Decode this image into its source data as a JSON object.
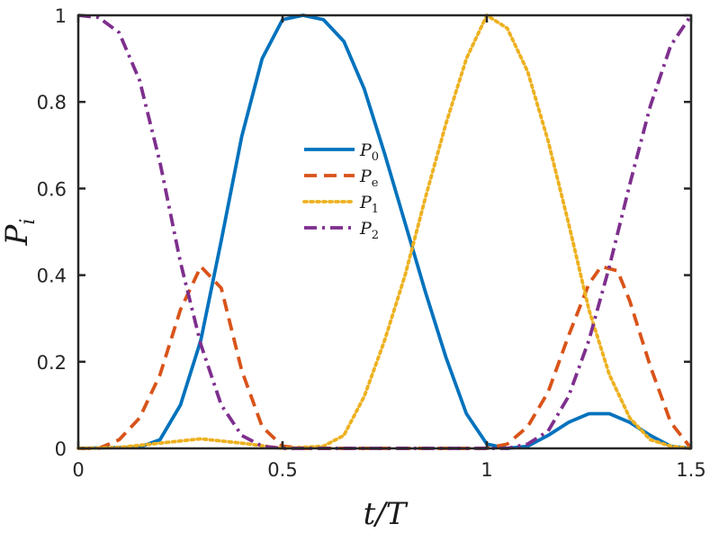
{
  "chart_data": {
    "type": "line",
    "xlabel": "t/T",
    "ylabel": "P",
    "ylabel_sub": "i",
    "xlim": [
      0,
      1.5
    ],
    "ylim": [
      0,
      1
    ],
    "x_ticks": [
      0,
      0.5,
      1,
      1.5
    ],
    "x_tick_labels": [
      "0",
      "0.5",
      "1",
      "1.5"
    ],
    "y_ticks": [
      0,
      0.2,
      0.4,
      0.6,
      0.8,
      1
    ],
    "y_tick_labels": [
      "0",
      "0.2",
      "0.4",
      "0.6",
      "0.8",
      "1"
    ],
    "grid": false,
    "legend_position": "center",
    "series": [
      {
        "name": "P",
        "name_sub": "0",
        "color": "#0072BD",
        "style": "solid",
        "points": [
          [
            0,
            0
          ],
          [
            0.15,
            0.003
          ],
          [
            0.2,
            0.02
          ],
          [
            0.25,
            0.1
          ],
          [
            0.3,
            0.25
          ],
          [
            0.35,
            0.48
          ],
          [
            0.4,
            0.72
          ],
          [
            0.45,
            0.9
          ],
          [
            0.5,
            0.99
          ],
          [
            0.55,
            1
          ],
          [
            0.6,
            0.99
          ],
          [
            0.65,
            0.94
          ],
          [
            0.7,
            0.83
          ],
          [
            0.75,
            0.68
          ],
          [
            0.8,
            0.52
          ],
          [
            0.85,
            0.36
          ],
          [
            0.9,
            0.21
          ],
          [
            0.95,
            0.08
          ],
          [
            1,
            0.01
          ],
          [
            1.05,
            0
          ],
          [
            1.1,
            0.005
          ],
          [
            1.15,
            0.03
          ],
          [
            1.2,
            0.06
          ],
          [
            1.25,
            0.08
          ],
          [
            1.3,
            0.08
          ],
          [
            1.35,
            0.06
          ],
          [
            1.4,
            0.03
          ],
          [
            1.45,
            0.005
          ],
          [
            1.5,
            0
          ]
        ]
      },
      {
        "name": "P",
        "name_sub": "e",
        "color": "#D95319",
        "style": "dashed",
        "points": [
          [
            0,
            0
          ],
          [
            0.05,
            0
          ],
          [
            0.1,
            0.02
          ],
          [
            0.15,
            0.07
          ],
          [
            0.2,
            0.17
          ],
          [
            0.25,
            0.32
          ],
          [
            0.3,
            0.42
          ],
          [
            0.35,
            0.37
          ],
          [
            0.4,
            0.18
          ],
          [
            0.45,
            0.05
          ],
          [
            0.5,
            0.005
          ],
          [
            0.55,
            0
          ],
          [
            1,
            0
          ],
          [
            1.05,
            0.01
          ],
          [
            1.1,
            0.05
          ],
          [
            1.15,
            0.13
          ],
          [
            1.2,
            0.26
          ],
          [
            1.25,
            0.38
          ],
          [
            1.28,
            0.42
          ],
          [
            1.32,
            0.41
          ],
          [
            1.35,
            0.34
          ],
          [
            1.4,
            0.19
          ],
          [
            1.45,
            0.06
          ],
          [
            1.5,
            0
          ]
        ]
      },
      {
        "name": "P",
        "name_sub": "1",
        "color": "#EDB120",
        "style": "dotted",
        "points": [
          [
            0,
            0
          ],
          [
            0.1,
            0.002
          ],
          [
            0.2,
            0.012
          ],
          [
            0.3,
            0.022
          ],
          [
            0.4,
            0.012
          ],
          [
            0.5,
            0
          ],
          [
            0.6,
            0.005
          ],
          [
            0.65,
            0.03
          ],
          [
            0.7,
            0.12
          ],
          [
            0.75,
            0.25
          ],
          [
            0.8,
            0.4
          ],
          [
            0.85,
            0.58
          ],
          [
            0.9,
            0.75
          ],
          [
            0.95,
            0.9
          ],
          [
            1,
            1
          ],
          [
            1.05,
            0.97
          ],
          [
            1.1,
            0.87
          ],
          [
            1.15,
            0.71
          ],
          [
            1.2,
            0.52
          ],
          [
            1.25,
            0.32
          ],
          [
            1.3,
            0.17
          ],
          [
            1.35,
            0.07
          ],
          [
            1.4,
            0.02
          ],
          [
            1.45,
            0.005
          ],
          [
            1.5,
            0
          ]
        ]
      },
      {
        "name": "P",
        "name_sub": "2",
        "color": "#7E2F8E",
        "style": "dashdot",
        "points": [
          [
            0,
            1
          ],
          [
            0.05,
            0.995
          ],
          [
            0.1,
            0.96
          ],
          [
            0.15,
            0.85
          ],
          [
            0.2,
            0.66
          ],
          [
            0.25,
            0.43
          ],
          [
            0.3,
            0.24
          ],
          [
            0.35,
            0.1
          ],
          [
            0.4,
            0.03
          ],
          [
            0.45,
            0.005
          ],
          [
            0.5,
            0
          ],
          [
            1,
            0
          ],
          [
            1.05,
            0
          ],
          [
            1.1,
            0.01
          ],
          [
            1.15,
            0.04
          ],
          [
            1.2,
            0.12
          ],
          [
            1.25,
            0.25
          ],
          [
            1.3,
            0.42
          ],
          [
            1.35,
            0.61
          ],
          [
            1.4,
            0.79
          ],
          [
            1.45,
            0.93
          ],
          [
            1.5,
            1
          ]
        ]
      }
    ]
  }
}
